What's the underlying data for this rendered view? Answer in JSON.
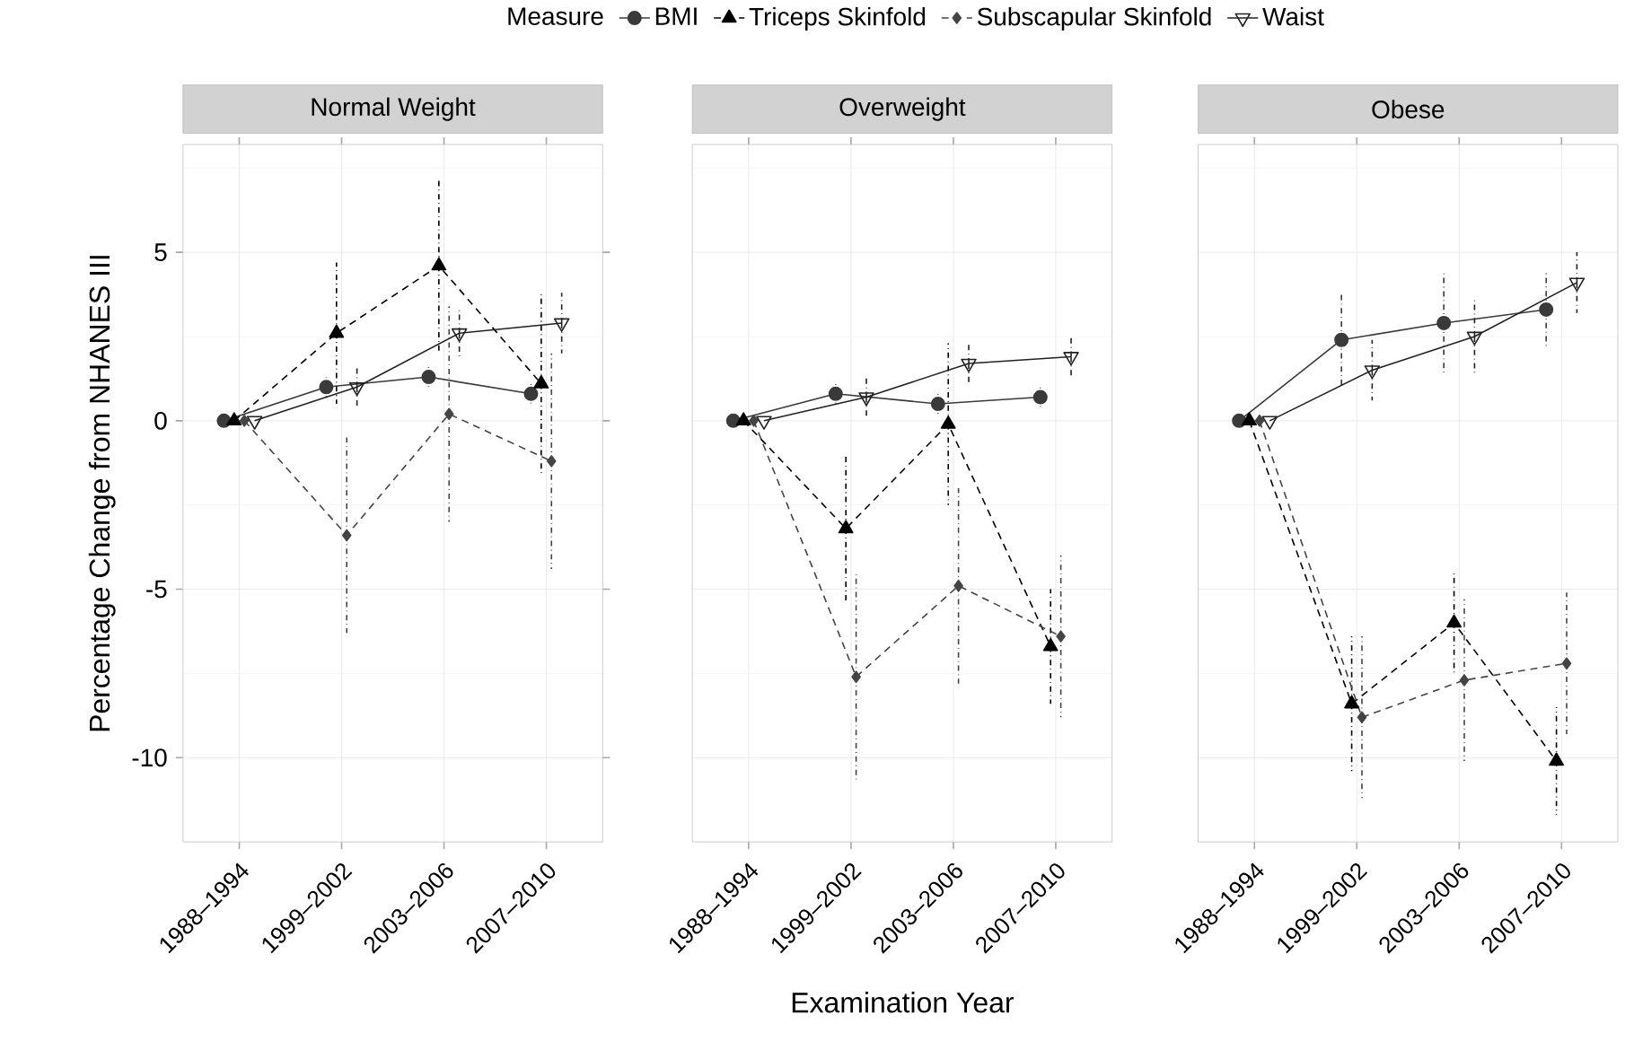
{
  "chart_data": [
    {
      "type": "line",
      "title": "Normal Weight",
      "ylabel": "Percentage Change from NHANES III",
      "legend_title": "Measure",
      "legend": "top",
      "grid": true,
      "categories": [
        "1988–1994",
        "1999–2002",
        "2003–2006",
        "2007–2010"
      ],
      "ylim": [
        -12.5,
        8.2
      ],
      "yticks": [
        -10,
        -5,
        0,
        5
      ],
      "series": [
        {
          "name": "BMI",
          "color": "#3a3a3a",
          "marker": "circle",
          "line_style": "solid",
          "values": [
            0,
            1.0,
            1.3,
            0.8
          ],
          "errors": [
            null,
            0.3,
            0.3,
            0.3
          ]
        },
        {
          "name": "Triceps Skinfold",
          "color": "#000000",
          "marker": "triangle",
          "line_style": "dashed",
          "values": [
            0,
            2.6,
            4.6,
            1.1
          ],
          "errors": [
            null,
            2.1,
            2.6,
            2.7
          ]
        },
        {
          "name": "Subscapular Skinfold",
          "color": "#444444",
          "marker": "diamond",
          "line_style": "dashed",
          "values": [
            0,
            -3.4,
            0.2,
            -1.2
          ],
          "errors": [
            null,
            2.9,
            3.2,
            3.2
          ]
        },
        {
          "name": "Waist",
          "color": "#222222",
          "marker": "triangle-down",
          "line_style": "solid",
          "values": [
            0,
            1.0,
            2.6,
            2.9
          ],
          "errors": [
            null,
            0.6,
            0.7,
            0.9
          ]
        }
      ]
    },
    {
      "type": "line",
      "title": "Overweight",
      "xlabel": "Examination Year",
      "tick_labels": "x",
      "grid": true,
      "categories": [
        "1988–1994",
        "1999–2002",
        "2003–2006",
        "2007–2010"
      ],
      "ylim": [
        -12.5,
        8.2
      ],
      "yticks": [
        -10,
        -5,
        0,
        5
      ],
      "series": [
        {
          "color": "#3a3a3a",
          "marker": "circle",
          "line_style": "solid",
          "values": [
            0,
            0.8,
            0.5,
            0.7
          ],
          "errors": [
            null,
            0.3,
            0.3,
            0.3
          ]
        },
        {
          "color": "#000000",
          "marker": "triangle",
          "line_style": "dashed",
          "values": [
            0,
            -3.2,
            -0.1,
            -6.7
          ],
          "errors": [
            null,
            2.2,
            2.4,
            1.7
          ]
        },
        {
          "color": "#444444",
          "marker": "diamond",
          "line_style": "dashed",
          "values": [
            0,
            -7.6,
            -4.9,
            -6.4
          ],
          "errors": [
            null,
            3.1,
            2.9,
            2.4
          ]
        },
        {
          "color": "#222222",
          "marker": "triangle-down",
          "line_style": "solid",
          "values": [
            0,
            0.7,
            1.7,
            1.9
          ],
          "errors": [
            null,
            0.6,
            0.6,
            0.6
          ]
        }
      ]
    },
    {
      "type": "line",
      "title": "Obese",
      "tick_labels": "x",
      "grid": true,
      "categories": [
        "1988–1994",
        "1999–2002",
        "2003–2006",
        "2007–2010"
      ],
      "ylim": [
        -12.5,
        8.2
      ],
      "yticks": [
        -10,
        -5,
        0,
        5
      ],
      "series": [
        {
          "color": "#3a3a3a",
          "marker": "circle",
          "line_style": "solid",
          "values": [
            0,
            2.4,
            2.9,
            3.3
          ],
          "errors": [
            null,
            1.4,
            1.5,
            1.1
          ]
        },
        {
          "color": "#000000",
          "marker": "triangle",
          "line_style": "dashed",
          "values": [
            0,
            -8.4,
            -6.0,
            -10.1
          ],
          "errors": [
            null,
            2.0,
            1.5,
            1.6
          ]
        },
        {
          "color": "#444444",
          "marker": "diamond",
          "line_style": "dashed",
          "values": [
            0,
            -8.8,
            -7.7,
            -7.2
          ],
          "errors": [
            null,
            2.4,
            2.4,
            2.1
          ]
        },
        {
          "color": "#222222",
          "marker": "triangle-down",
          "line_style": "solid",
          "values": [
            0,
            1.5,
            2.5,
            4.1
          ],
          "errors": [
            null,
            0.9,
            1.1,
            0.9
          ]
        }
      ]
    }
  ]
}
